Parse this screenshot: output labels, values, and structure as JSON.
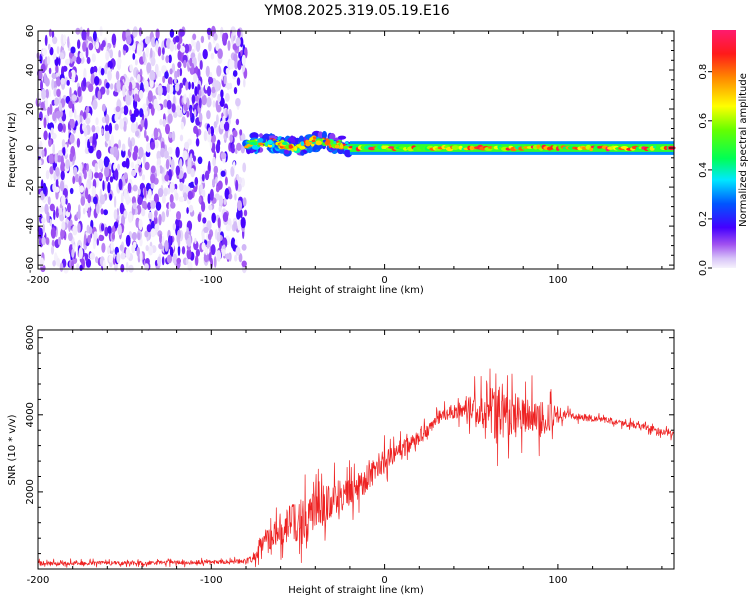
{
  "title": "YM08.2025.319.05.19.E16",
  "colors": {
    "snr_line": "#ee2222",
    "axis": "#000000",
    "background": "#ffffff"
  },
  "chart_data": [
    {
      "type": "heatmap",
      "name": "spectrogram",
      "xlabel": "Height of straight line (km)",
      "ylabel": "Frequency (Hz)",
      "xlim": [
        -200,
        167
      ],
      "ylim": [
        -62,
        60
      ],
      "x_ticks": [
        -200,
        -100,
        0,
        100
      ],
      "y_ticks": [
        -60,
        -40,
        -20,
        0,
        20,
        40,
        60
      ],
      "colorbar": {
        "label": "Normalized spectral amplitude",
        "range": [
          0.0,
          0.97
        ],
        "ticks": [
          "0.0",
          "0.2",
          "0.4",
          "0.6",
          "0.8"
        ],
        "tick_values": [
          0.0,
          0.2,
          0.4,
          0.6,
          0.8
        ]
      },
      "regions": [
        {
          "x_range": [
            -200,
            -80
          ],
          "freq_range": [
            -62,
            60
          ],
          "amplitude_range": [
            0.0,
            0.15
          ],
          "description_value": "broadband low-amplitude"
        },
        {
          "x_range": [
            -80,
            -20
          ],
          "center_freq": [
            [
              -80,
              2
            ],
            [
              -70,
              3
            ],
            [
              -60,
              2
            ],
            [
              -50,
              0
            ],
            [
              -40,
              4
            ],
            [
              -35,
              3
            ],
            [
              -20,
              1
            ]
          ],
          "amplitude_range": [
            0.2,
            0.9
          ]
        },
        {
          "x_range": [
            -20,
            167
          ],
          "center_freq": [
            [
              -20,
              0
            ],
            [
              0,
              0
            ],
            [
              50,
              0
            ],
            [
              100,
              0
            ],
            [
              167,
              0
            ]
          ],
          "amplitude_range": [
            0.4,
            0.97
          ]
        }
      ]
    },
    {
      "type": "line",
      "name": "snr",
      "xlabel": "Height of straight line (km)",
      "ylabel": "SNR (10 * v/v)",
      "xlim": [
        -200,
        167
      ],
      "ylim": [
        0,
        6200
      ],
      "x_ticks": [
        -200,
        -100,
        0,
        100
      ],
      "y_ticks": [
        2000,
        4000,
        6000
      ],
      "envelope": {
        "x": [
          -200,
          -150,
          -100,
          -80,
          -75,
          -70,
          -60,
          -50,
          -40,
          -30,
          -20,
          -10,
          0,
          10,
          20,
          30,
          40,
          50,
          60,
          65,
          70,
          80,
          90,
          100,
          105,
          110,
          120,
          130,
          140,
          150,
          160,
          167
        ],
        "mean": [
          150,
          150,
          180,
          200,
          300,
          700,
          1000,
          1250,
          1500,
          1800,
          2000,
          2400,
          2800,
          3100,
          3400,
          3900,
          4100,
          4150,
          4200,
          4000,
          4000,
          4000,
          3900,
          4000,
          4000,
          3950,
          3900,
          3850,
          3750,
          3700,
          3550,
          3500
        ],
        "spread": [
          120,
          120,
          120,
          140,
          250,
          600,
          900,
          1200,
          1100,
          1000,
          900,
          900,
          700,
          500,
          450,
          400,
          450,
          700,
          1400,
          1900,
          1200,
          1000,
          1200,
          500,
          250,
          180,
          180,
          180,
          180,
          180,
          180,
          180
        ]
      }
    }
  ]
}
